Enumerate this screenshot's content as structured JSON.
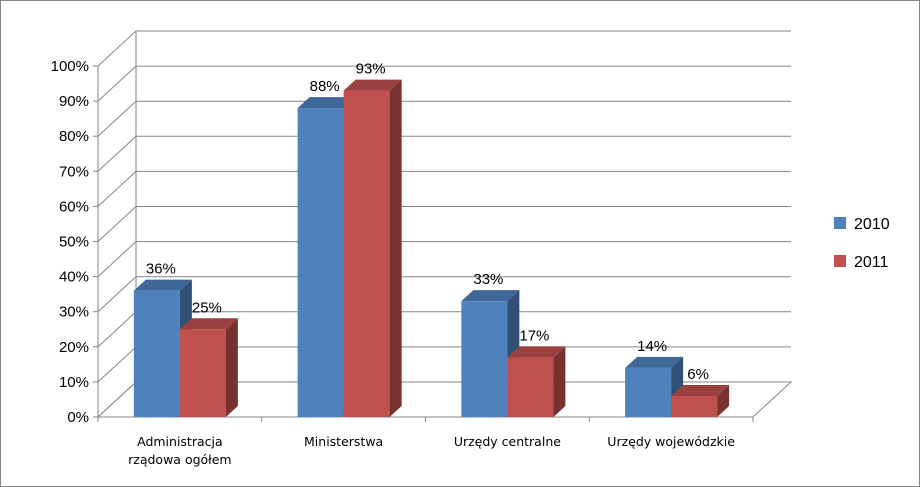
{
  "chart_data": {
    "type": "bar",
    "title": "",
    "xlabel": "",
    "ylabel": "",
    "categories": [
      [
        "Administracja",
        "rządowa ogółem"
      ],
      [
        "Ministerstwa"
      ],
      [
        "Urzędy centralne"
      ],
      [
        "Urzędy wojewódzkie"
      ]
    ],
    "series": [
      {
        "name": "2010",
        "values": [
          36,
          88,
          33,
          14
        ],
        "labels": [
          "36%",
          "88%",
          "33%",
          "14%"
        ],
        "color": "#4F81BD"
      },
      {
        "name": "2011",
        "values": [
          25,
          93,
          17,
          6
        ],
        "labels": [
          "25%",
          "93%",
          "17%",
          "6%"
        ],
        "color": "#C0504D"
      }
    ],
    "yticks": [
      "0%",
      "10%",
      "20%",
      "30%",
      "40%",
      "50%",
      "60%",
      "70%",
      "80%",
      "90%",
      "100%"
    ],
    "ylim": [
      0,
      100
    ],
    "grid": true,
    "legend_position": "right",
    "style": "3d-clustered-column"
  }
}
